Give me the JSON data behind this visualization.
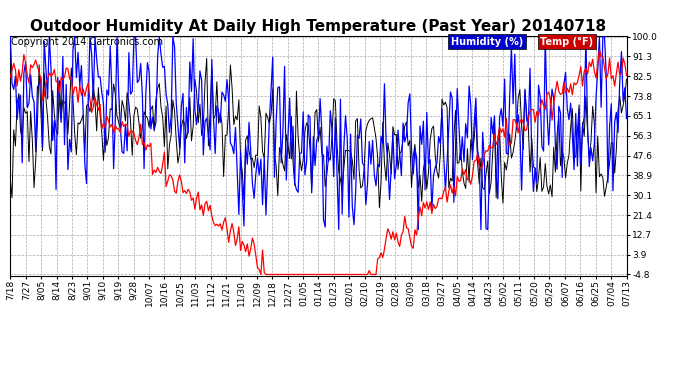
{
  "title": "Outdoor Humidity At Daily High Temperature (Past Year) 20140718",
  "copyright": "Copyright 2014 Cartronics.com",
  "legend_humidity": "Humidity (%)",
  "legend_temp": "Temp (°F)",
  "legend_humidity_bg": "#0000cc",
  "legend_temp_bg": "#cc0000",
  "ymin": -4.8,
  "ymax": 100.0,
  "yticks": [
    100.0,
    91.3,
    82.5,
    73.8,
    65.1,
    56.3,
    47.6,
    38.9,
    30.1,
    21.4,
    12.7,
    3.9,
    -4.8
  ],
  "humidity_color": "#0000ff",
  "temp_color": "#ff0000",
  "black_color": "#000000",
  "background_color": "#ffffff",
  "grid_color": "#aaaaaa",
  "title_fontsize": 11,
  "copyright_fontsize": 7,
  "tick_fontsize": 6.5,
  "x_tick_labels": [
    "7/18",
    "7/27",
    "8/05",
    "8/14",
    "8/23",
    "9/01",
    "9/10",
    "9/19",
    "9/28",
    "10/07",
    "10/16",
    "10/25",
    "11/03",
    "11/12",
    "11/21",
    "11/30",
    "12/09",
    "12/18",
    "12/27",
    "01/05",
    "01/14",
    "01/23",
    "02/01",
    "02/10",
    "02/19",
    "02/28",
    "03/09",
    "03/18",
    "03/27",
    "04/05",
    "04/14",
    "04/23",
    "05/02",
    "05/11",
    "05/20",
    "05/29",
    "06/07",
    "06/16",
    "06/25",
    "07/04",
    "07/13"
  ],
  "num_points": 365
}
